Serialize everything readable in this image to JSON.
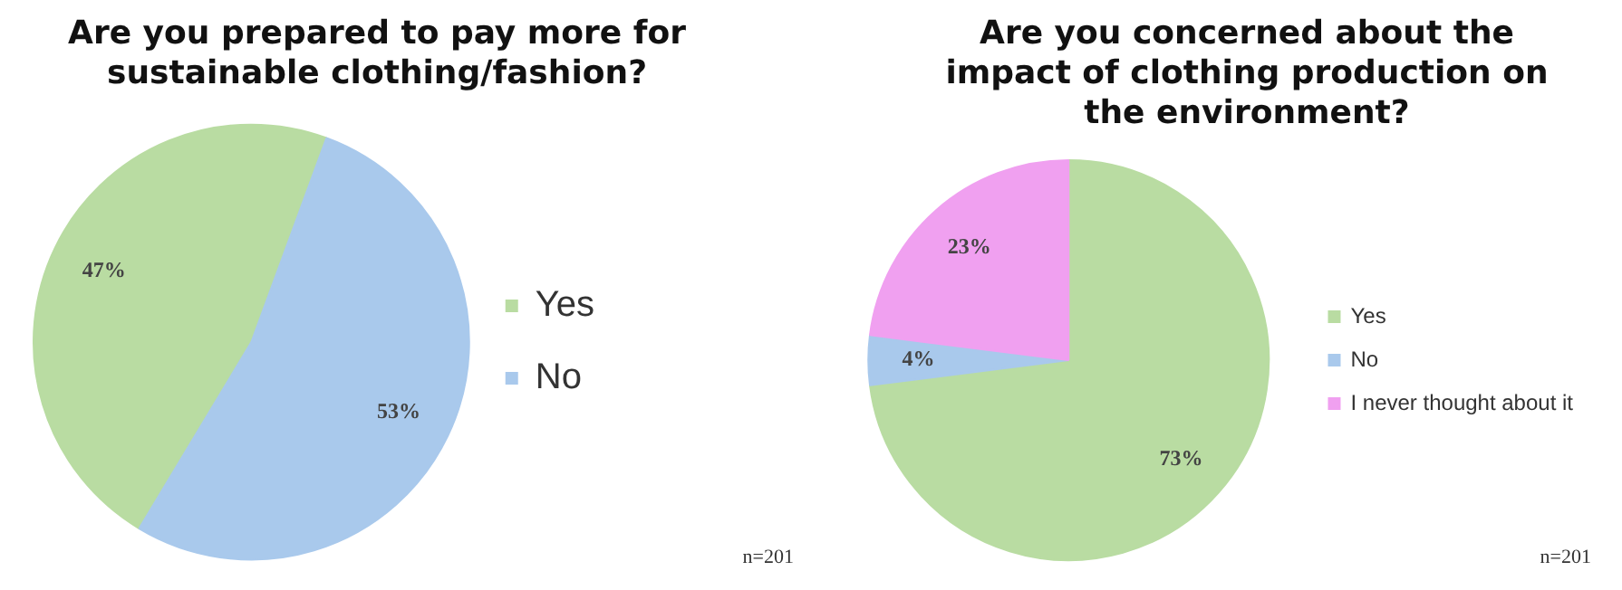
{
  "chart_data": [
    {
      "type": "pie",
      "title": "Are you prepared to pay more for sustainable clothing/fashion?",
      "categories": [
        "Yes",
        "No"
      ],
      "values": [
        47,
        53
      ],
      "colors": [
        "#b9dca2",
        "#a9c9ec"
      ],
      "value_labels": [
        "47%",
        "53%"
      ],
      "legend": "right",
      "annotations": [
        "n=201"
      ]
    },
    {
      "type": "pie",
      "title": "Are you concerned about the impact of clothing production on the environment?",
      "categories": [
        "Yes",
        "No",
        "I never thought about it"
      ],
      "values": [
        73,
        4,
        23
      ],
      "colors": [
        "#b9dca2",
        "#a9c9ec",
        "#f0a0f0"
      ],
      "value_labels": [
        "73%",
        "4%",
        "23%"
      ],
      "legend": "right",
      "annotations": [
        "n=201"
      ]
    }
  ]
}
